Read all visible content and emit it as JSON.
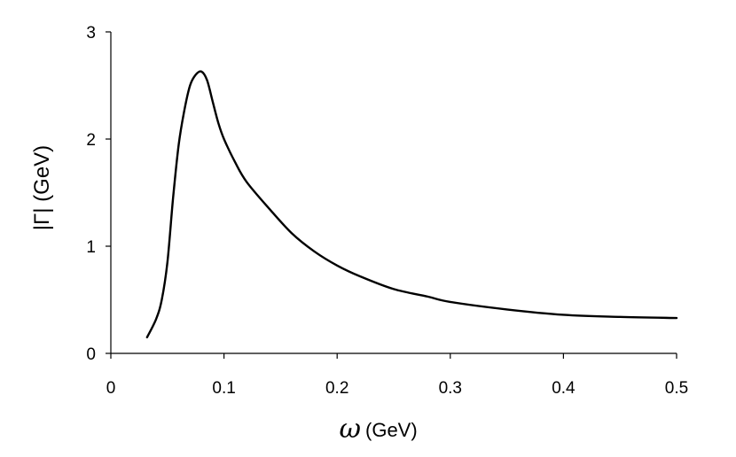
{
  "chart_data": {
    "type": "line",
    "title": "",
    "xlabel_symbol": "ω",
    "xlabel_unit": "(GeV)",
    "ylabel": "|Γ|  (GeV)",
    "xlim": [
      0,
      0.5
    ],
    "ylim": [
      0,
      3
    ],
    "x_ticks": [
      "0",
      "0.1",
      "0.2",
      "0.3",
      "0.4",
      "0.5"
    ],
    "y_ticks": [
      "0",
      "1",
      "2",
      "3"
    ],
    "grid": false,
    "legend": "none",
    "line_color": "#000000",
    "series": [
      {
        "x": [
          0.032,
          0.04,
          0.045,
          0.05,
          0.055,
          0.06,
          0.065,
          0.07,
          0.075,
          0.08,
          0.085,
          0.09,
          0.095,
          0.1,
          0.11,
          0.12,
          0.14,
          0.16,
          0.18,
          0.2,
          0.22,
          0.25,
          0.28,
          0.3,
          0.35,
          0.4,
          0.45,
          0.5
        ],
        "y": [
          0.15,
          0.32,
          0.5,
          0.85,
          1.45,
          1.95,
          2.27,
          2.5,
          2.6,
          2.63,
          2.55,
          2.35,
          2.15,
          2.0,
          1.78,
          1.6,
          1.35,
          1.12,
          0.95,
          0.82,
          0.72,
          0.6,
          0.53,
          0.48,
          0.41,
          0.36,
          0.34,
          0.33
        ]
      }
    ]
  }
}
